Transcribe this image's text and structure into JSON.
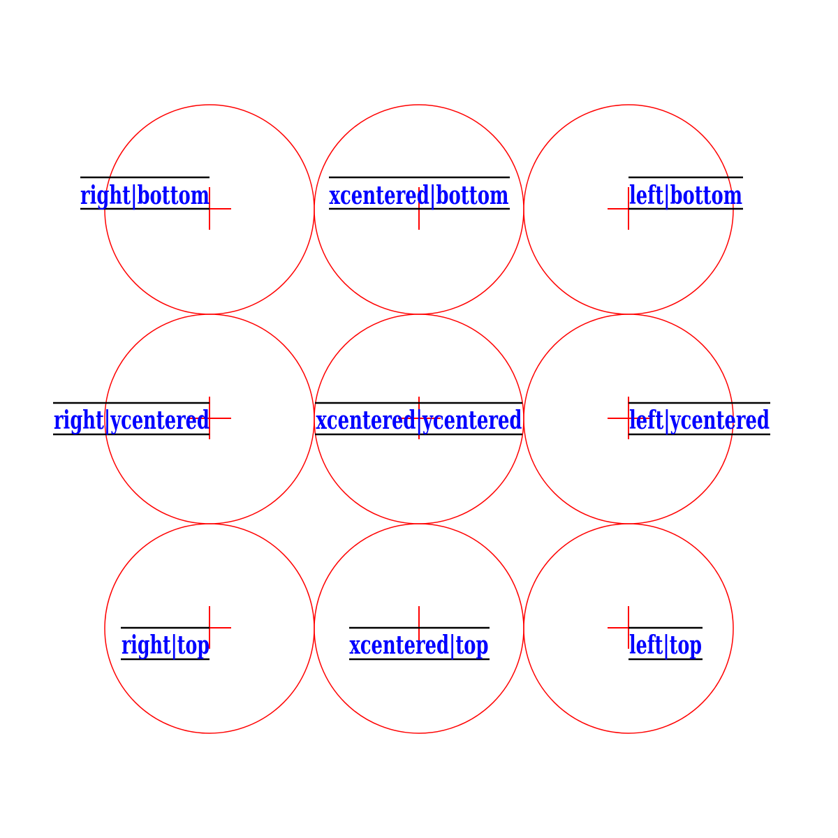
{
  "colors": {
    "circle": "#ff0000",
    "crosshair": "#ff0000",
    "text": "#0000ff",
    "box_lines": "#000000",
    "background": "#ffffff"
  },
  "cells": [
    {
      "label": "right|bottom"
    },
    {
      "label": "xcentered|bottom"
    },
    {
      "label": "left|bottom"
    },
    {
      "label": "right|ycentered"
    },
    {
      "label": "xcentered|ycentered"
    },
    {
      "label": "left|ycentered"
    },
    {
      "label": "right|top"
    },
    {
      "label": "xcentered|top"
    },
    {
      "label": "left|top"
    }
  ]
}
